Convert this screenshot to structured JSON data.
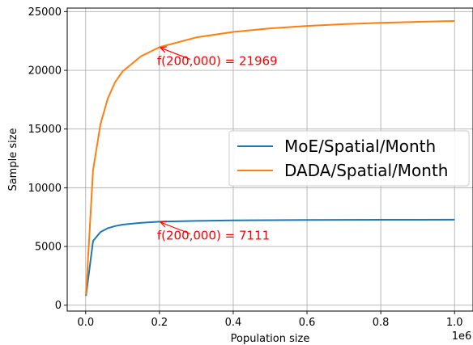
{
  "chart_data": {
    "type": "line",
    "title": "",
    "xlabel": "Population size",
    "ylabel": "Sample size",
    "x_offset_label": "1e6",
    "xlim": [
      -50000,
      1050000
    ],
    "ylim": [
      -500,
      25300
    ],
    "xticks": [
      0,
      200000,
      400000,
      600000,
      800000,
      1000000
    ],
    "xtick_labels": [
      "0.0",
      "0.2",
      "0.4",
      "0.6",
      "0.8",
      "1.0"
    ],
    "yticks": [
      0,
      5000,
      10000,
      15000,
      20000,
      25000
    ],
    "ytick_labels": [
      "0",
      "5000",
      "10000",
      "15000",
      "20000",
      "25000"
    ],
    "grid": true,
    "legend_position": "center-right",
    "series": [
      {
        "name": "MoE/Spatial/Month",
        "color": "#1f77b4",
        "x": [
          1000,
          20000,
          40000,
          60000,
          80000,
          100000,
          150000,
          200000,
          300000,
          400000,
          500000,
          600000,
          700000,
          800000,
          900000,
          1000000
        ],
        "y": [
          800,
          5470,
          6230,
          6560,
          6740,
          6860,
          7020,
          7111,
          7180,
          7220,
          7240,
          7255,
          7265,
          7272,
          7277,
          7281
        ]
      },
      {
        "name": "DADA/Spatial/Month",
        "color": "#ff7f0e",
        "x": [
          1000,
          20000,
          40000,
          60000,
          80000,
          100000,
          150000,
          200000,
          300000,
          400000,
          500000,
          600000,
          700000,
          800000,
          900000,
          1000000
        ],
        "y": [
          900,
          11500,
          15400,
          17600,
          19000,
          19900,
          21200,
          21969,
          22800,
          23270,
          23570,
          23780,
          23930,
          24040,
          24130,
          24200
        ]
      }
    ],
    "annotations": [
      {
        "text": "f(200,000) = 21969",
        "x": 200000,
        "y": 21969,
        "color": "#ff0000"
      },
      {
        "text": "f(200,000) = 7111",
        "x": 200000,
        "y": 7111,
        "color": "#ff0000"
      }
    ]
  }
}
